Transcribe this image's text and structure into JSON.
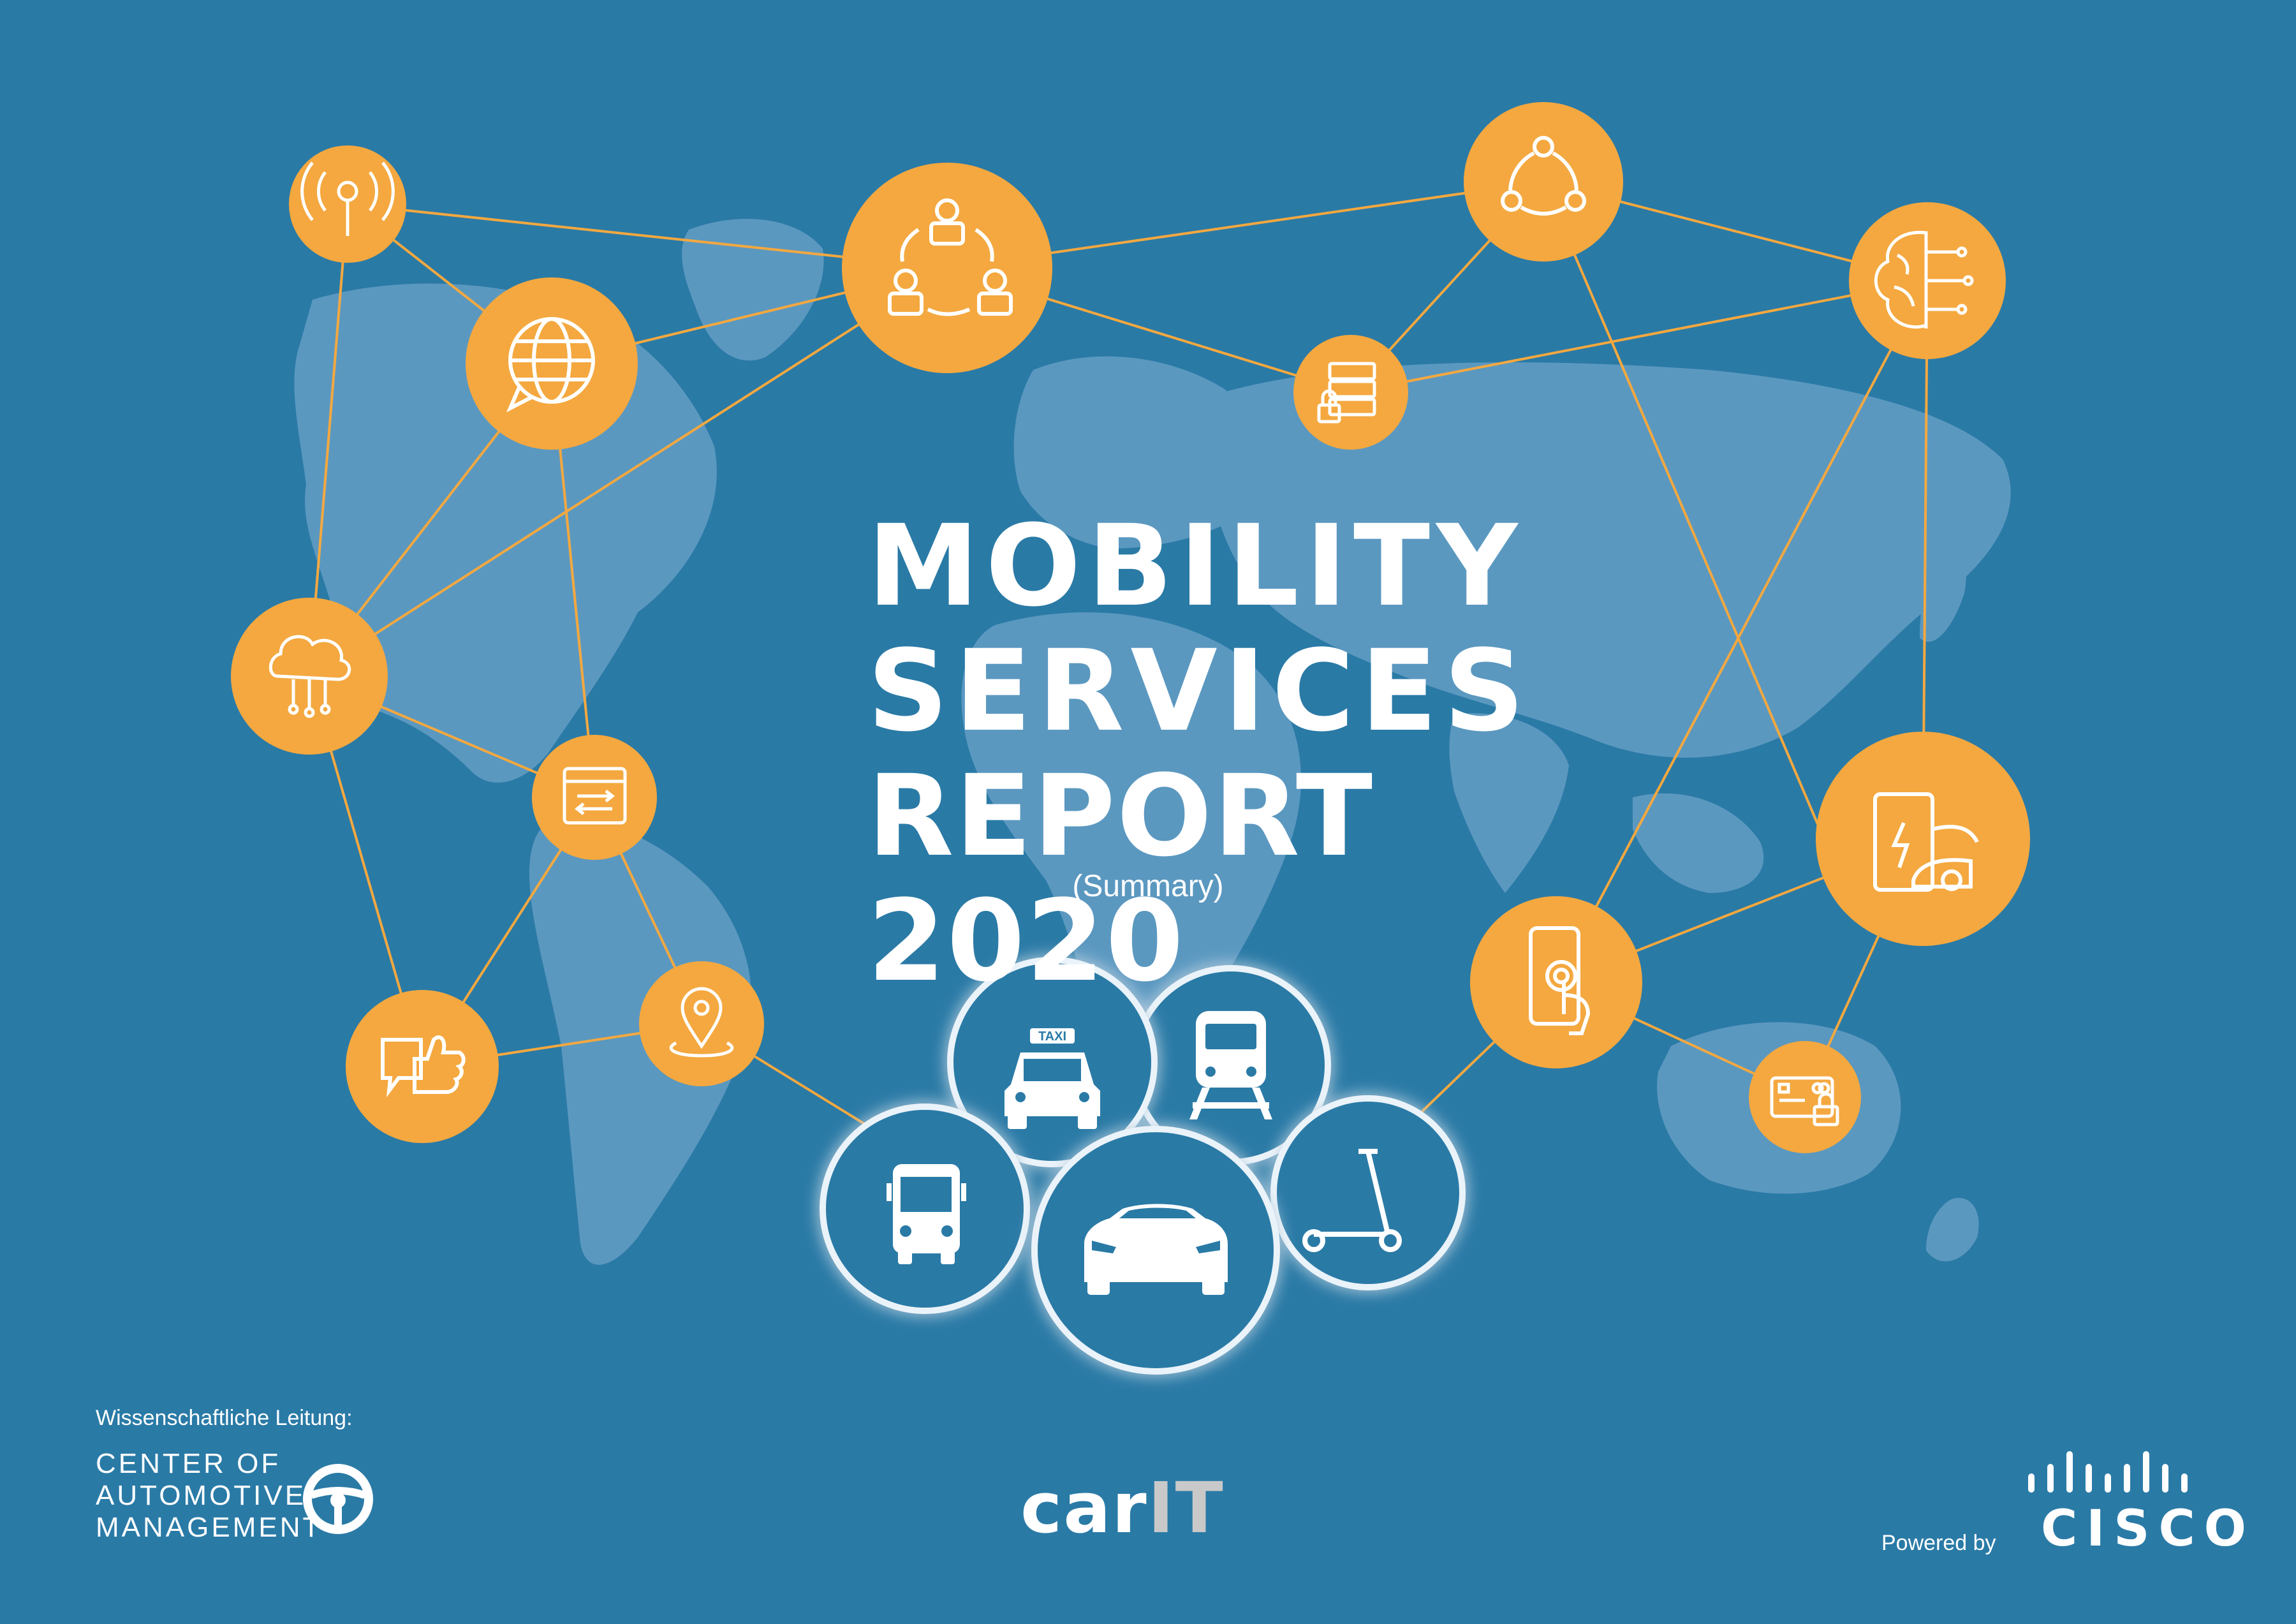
{
  "title": {
    "line1": "MOBILITY",
    "line2": "SERVICES",
    "line3": "REPORT 2020",
    "subtitle": "(Summary)"
  },
  "colors": {
    "background": "#2a7aa6",
    "map": "#5b98c0",
    "node": "#f4a83f",
    "link": "#f4a83f",
    "vehicle_bubble": "#2a7aa6",
    "white": "#ffffff"
  },
  "nodes": [
    {
      "name": "antenna-icon"
    },
    {
      "name": "team-cycle-icon"
    },
    {
      "name": "share-nodes-icon"
    },
    {
      "name": "globe-chat-icon"
    },
    {
      "name": "server-lock-icon"
    },
    {
      "name": "ai-brain-icon"
    },
    {
      "name": "cloud-computing-icon"
    },
    {
      "name": "browser-exchange-icon"
    },
    {
      "name": "ev-charging-icon"
    },
    {
      "name": "touch-phone-icon"
    },
    {
      "name": "location-pin-icon"
    },
    {
      "name": "feedback-like-icon"
    },
    {
      "name": "secure-card-icon"
    }
  ],
  "vehicles": [
    {
      "name": "taxi-icon",
      "label": "TAXI"
    },
    {
      "name": "train-icon"
    },
    {
      "name": "bus-icon"
    },
    {
      "name": "car-icon"
    },
    {
      "name": "scooter-icon"
    }
  ],
  "footer": {
    "left_label": "Wissenschaftliche Leitung:",
    "cam_line1": "CENTER OF",
    "cam_line2": "AUTOMOTIVE",
    "cam_line3": "MANAGEMENT",
    "carit_main": "car",
    "carit_accent": "IT",
    "powered_label": "Powered by",
    "cisco": "CISCO"
  }
}
